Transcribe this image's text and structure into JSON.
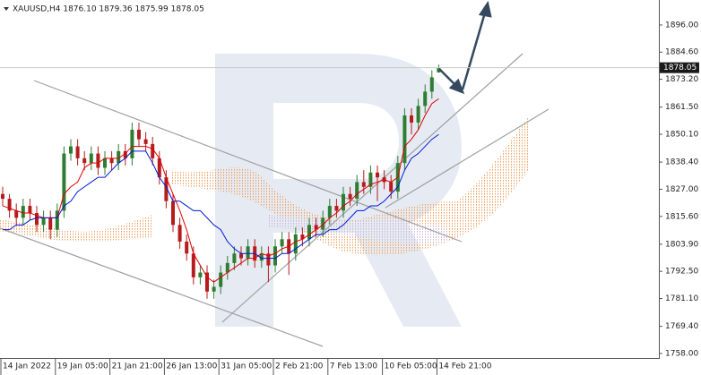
{
  "chart_data": {
    "type": "candlestick",
    "title": "XAUUSD,H4  1876.10 1879.36 1875.99 1878.05",
    "last_price_label": "1878.05",
    "up_color": "#2e7d32",
    "down_color": "#b71c1c",
    "categories": [
      "14 Jan 2022",
      null,
      null,
      null,
      null,
      null,
      null,
      null,
      "19 Jan 05:00",
      null,
      null,
      null,
      null,
      null,
      null,
      null,
      "21 Jan 21:00",
      null,
      null,
      null,
      null,
      null,
      null,
      null,
      "26 Jan 13:00",
      null,
      null,
      null,
      null,
      null,
      null,
      null,
      "31 Jan 05:00",
      null,
      null,
      null,
      null,
      null,
      null,
      null,
      "2 Feb 21:00",
      null,
      null,
      null,
      null,
      null,
      null,
      null,
      "7 Feb 13:00",
      null,
      null,
      null,
      null,
      null,
      null,
      null,
      "10 Feb 05:00",
      null,
      null,
      null,
      null,
      null,
      null,
      null,
      "14 Feb 21:00"
    ],
    "open": [
      1825,
      1823,
      1818,
      1815,
      1820,
      1817,
      1812,
      1815,
      1810,
      1818,
      1842,
      1845,
      1840,
      1838,
      1842,
      1836,
      1840,
      1838,
      1843,
      1840,
      1852,
      1848,
      1846,
      1840,
      1832,
      1822,
      1812,
      1805,
      1800,
      1790,
      1792,
      1784,
      1786,
      1792,
      1796,
      1800,
      1798,
      1803,
      1797,
      1800,
      1795,
      1803,
      1806,
      1800,
      1808,
      1806,
      1812,
      1810,
      1815,
      1820,
      1818,
      1825,
      1823,
      1830,
      1828,
      1834,
      1832,
      1830,
      1826,
      1838,
      1858,
      1855,
      1862,
      1868,
      1876.1
    ],
    "high": [
      1828,
      1825,
      1821,
      1823,
      1823,
      1820,
      1818,
      1818,
      1821,
      1845,
      1848,
      1848,
      1843,
      1845,
      1845,
      1843,
      1843,
      1846,
      1846,
      1855,
      1855,
      1851,
      1849,
      1843,
      1835,
      1825,
      1815,
      1808,
      1803,
      1795,
      1795,
      1789,
      1795,
      1799,
      1803,
      1803,
      1806,
      1806,
      1803,
      1803,
      1806,
      1809,
      1809,
      1811,
      1811,
      1815,
      1815,
      1818,
      1823,
      1823,
      1828,
      1828,
      1833,
      1835,
      1837,
      1837,
      1835,
      1833,
      1841,
      1861,
      1861,
      1865,
      1871,
      1877,
      1879.36
    ],
    "low": [
      1820,
      1815,
      1812,
      1812,
      1814,
      1809,
      1809,
      1806,
      1807,
      1815,
      1839,
      1837,
      1835,
      1835,
      1833,
      1833,
      1835,
      1835,
      1837,
      1837,
      1845,
      1843,
      1837,
      1829,
      1819,
      1809,
      1802,
      1797,
      1787,
      1787,
      1781,
      1781,
      1783,
      1789,
      1793,
      1795,
      1795,
      1794,
      1794,
      1788,
      1792,
      1800,
      1791,
      1797,
      1803,
      1803,
      1807,
      1807,
      1812,
      1815,
      1815,
      1820,
      1820,
      1825,
      1825,
      1822,
      1827,
      1823,
      1823,
      1835,
      1850,
      1852,
      1859,
      1865,
      1875.99
    ],
    "close": [
      1823,
      1818,
      1815,
      1820,
      1817,
      1812,
      1815,
      1810,
      1818,
      1842,
      1845,
      1840,
      1838,
      1842,
      1836,
      1840,
      1838,
      1843,
      1840,
      1852,
      1848,
      1846,
      1840,
      1832,
      1822,
      1812,
      1805,
      1800,
      1790,
      1792,
      1784,
      1786,
      1792,
      1796,
      1800,
      1798,
      1803,
      1797,
      1800,
      1795,
      1803,
      1806,
      1800,
      1808,
      1806,
      1812,
      1810,
      1815,
      1820,
      1818,
      1825,
      1823,
      1830,
      1828,
      1834,
      1832,
      1830,
      1826,
      1838,
      1858,
      1855,
      1862,
      1868,
      1874,
      1878.05
    ],
    "series": [
      {
        "color": "#e00000",
        "values": [
          1820,
          1819,
          1818,
          1817,
          1817,
          1816,
          1815,
          1815,
          1815,
          1825,
          1828,
          1830,
          1836,
          1838,
          1838,
          1840,
          1840,
          1840,
          1842,
          1845,
          1845,
          1845,
          1844,
          1840,
          1832,
          1825,
          1818,
          1810,
          1800,
          1795,
          1790,
          1788,
          1790,
          1792,
          1794,
          1796,
          1798,
          1798,
          1800,
          1799,
          1800,
          1802,
          1803,
          1805,
          1806,
          1808,
          1810,
          1812,
          1815,
          1817,
          1820,
          1822,
          1825,
          1827,
          1829,
          1830,
          1831,
          1830,
          1832,
          1845,
          1848,
          1852,
          1858,
          1863,
          1865
        ]
      },
      {
        "color": "#0018d8",
        "values": [
          1810,
          1810,
          1812,
          1812,
          1814,
          1815,
          1815,
          1815,
          1815,
          1820,
          1822,
          1826,
          1828,
          1830,
          1832,
          1832,
          1835,
          1838,
          1840,
          1843,
          1843,
          1843,
          1838,
          1832,
          1828,
          1822,
          1822,
          1820,
          1818,
          1818,
          1815,
          1812,
          1810,
          1805,
          1802,
          1800,
          1800,
          1800,
          1798,
          1798,
          1798,
          1800,
          1800,
          1802,
          1804,
          1806,
          1808,
          1808,
          1810,
          1810,
          1812,
          1815,
          1818,
          1818,
          1820,
          1820,
          1822,
          1825,
          1828,
          1835,
          1840,
          1842,
          1845,
          1848,
          1850
        ]
      }
    ],
    "ylim": [
      1756.1,
      1906.5
    ],
    "yticks": [
      {
        "value": 1758,
        "label": "1758.00"
      },
      {
        "value": 1769.4,
        "label": "1769.40"
      },
      {
        "value": 1781.1,
        "label": "1781.10"
      },
      {
        "value": 1792.5,
        "label": "1792.50"
      },
      {
        "value": 1803.9,
        "label": "1803.90"
      },
      {
        "value": 1815.6,
        "label": "1815.60"
      },
      {
        "value": 1827,
        "label": "1827.00"
      },
      {
        "value": 1838.4,
        "label": "1838.40"
      },
      {
        "value": 1850.1,
        "label": "1850.10"
      },
      {
        "value": 1861.5,
        "label": "1861.50"
      },
      {
        "value": 1873.2,
        "label": "1873.20"
      },
      {
        "value": 1884.6,
        "label": "1884.60"
      },
      {
        "value": 1896,
        "label": "1896.00"
      }
    ]
  }
}
